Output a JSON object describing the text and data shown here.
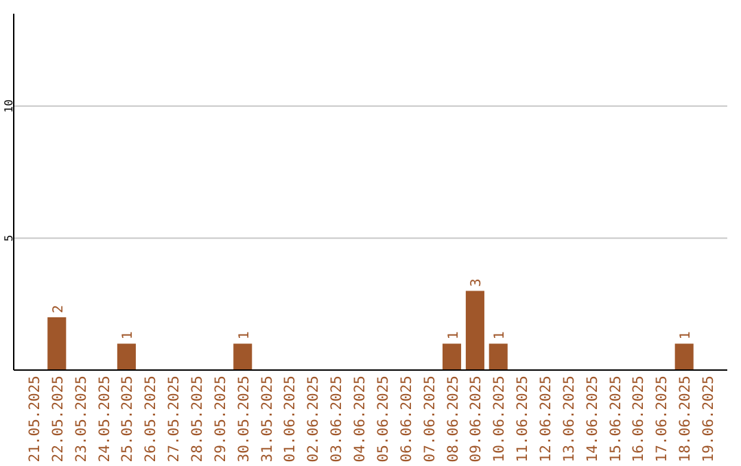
{
  "chart_data": {
    "type": "bar",
    "categories": [
      "21.05.2025",
      "22.05.2025",
      "23.05.2025",
      "24.05.2025",
      "25.05.2025",
      "26.05.2025",
      "27.05.2025",
      "28.05.2025",
      "29.05.2025",
      "30.05.2025",
      "31.05.2025",
      "01.06.2025",
      "02.06.2025",
      "03.06.2025",
      "04.06.2025",
      "05.06.2025",
      "06.06.2025",
      "07.06.2025",
      "08.06.2025",
      "09.06.2025",
      "10.06.2025",
      "11.06.2025",
      "12.06.2025",
      "13.06.2025",
      "14.06.2025",
      "15.06.2025",
      "16.06.2025",
      "17.06.2025",
      "18.06.2025",
      "19.06.2025"
    ],
    "values": [
      0,
      2,
      0,
      0,
      1,
      0,
      0,
      0,
      0,
      1,
      0,
      0,
      0,
      0,
      0,
      0,
      0,
      0,
      1,
      3,
      1,
      0,
      0,
      0,
      0,
      0,
      0,
      0,
      1,
      0
    ],
    "value_labels": [
      null,
      "2",
      null,
      null,
      "1",
      null,
      null,
      null,
      null,
      "1",
      null,
      null,
      null,
      null,
      null,
      null,
      null,
      null,
      "1",
      "3",
      "1",
      null,
      null,
      null,
      null,
      null,
      null,
      null,
      "1",
      null
    ],
    "color": "#a0572a",
    "ylim": [
      0,
      13.5
    ],
    "yticks": [
      5,
      10
    ],
    "grid": "y"
  }
}
